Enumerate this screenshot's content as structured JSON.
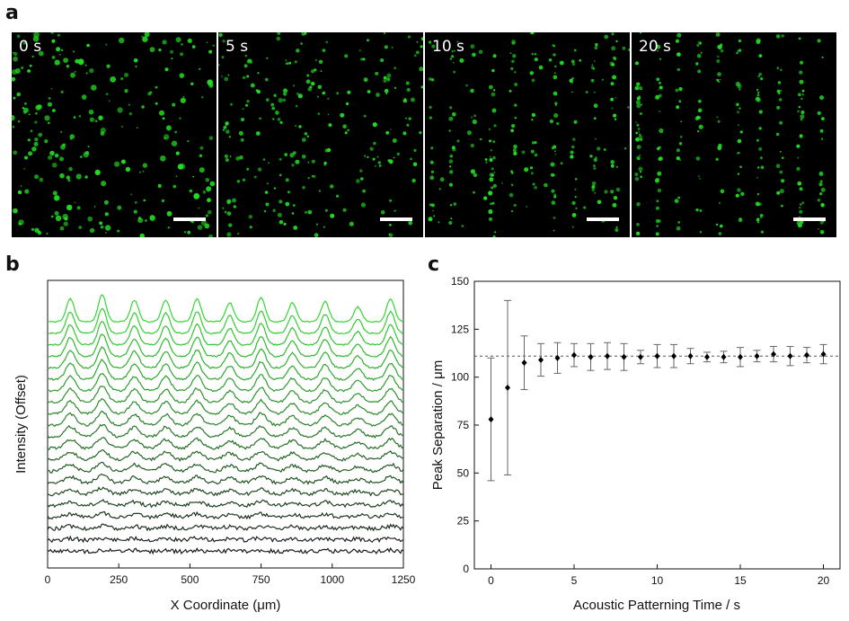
{
  "figure": {
    "panel_labels": [
      "a",
      "b",
      "c"
    ],
    "micrographs": [
      {
        "time_label": "0 s",
        "alignment": 0.0
      },
      {
        "time_label": "5 s",
        "alignment": 0.15
      },
      {
        "time_label": "10 s",
        "alignment": 0.75
      },
      {
        "time_label": "20 s",
        "alignment": 1.0
      }
    ],
    "colors": {
      "particle": "#22dd22",
      "image_bg": "#000000",
      "trace_bright": "#33d633",
      "trace_dark": "#1a1a1a",
      "marker": "#000000",
      "errorbar": "#666666"
    }
  },
  "chart_data": [
    {
      "type": "line",
      "title": "",
      "xlabel": "X Coordinate (μm)",
      "ylabel": "Intensity (Offset)",
      "xlim": [
        0,
        1250
      ],
      "xticks": [
        "0",
        "250",
        "500",
        "750",
        "1000",
        "1250"
      ],
      "n_traces": 21,
      "peak_positions_um": [
        80,
        192,
        305,
        415,
        525,
        640,
        750,
        860,
        975,
        1090,
        1205
      ],
      "peak_heights_top_trace": [
        0.85,
        1.0,
        0.8,
        0.8,
        0.85,
        0.7,
        0.9,
        0.7,
        0.75,
        0.55,
        0.85
      ]
    },
    {
      "type": "scatter",
      "title": "",
      "xlabel": "Acoustic Patterning Time / s",
      "ylabel": "Peak Separation / μm",
      "xlim": [
        -1,
        21
      ],
      "ylim": [
        0,
        150
      ],
      "xticks": [
        "0",
        "5",
        "10",
        "15",
        "20"
      ],
      "yticks": [
        "0",
        "25",
        "50",
        "75",
        "100",
        "125",
        "150"
      ],
      "reference_line": 111,
      "x": [
        0,
        1,
        2,
        3,
        4,
        5,
        6,
        7,
        8,
        9,
        10,
        11,
        12,
        13,
        14,
        15,
        16,
        17,
        18,
        19,
        20
      ],
      "y": [
        78,
        94.5,
        107.5,
        109,
        110,
        111.5,
        110.5,
        111,
        110.5,
        110.5,
        111,
        111,
        111,
        110.5,
        110.5,
        110.5,
        111,
        112,
        111,
        111.5,
        112
      ],
      "err": [
        32,
        45.5,
        14,
        8.5,
        8,
        6,
        7,
        7,
        7,
        3.5,
        6,
        6,
        4,
        2.5,
        3,
        5,
        3,
        4,
        5,
        4,
        5
      ]
    }
  ]
}
